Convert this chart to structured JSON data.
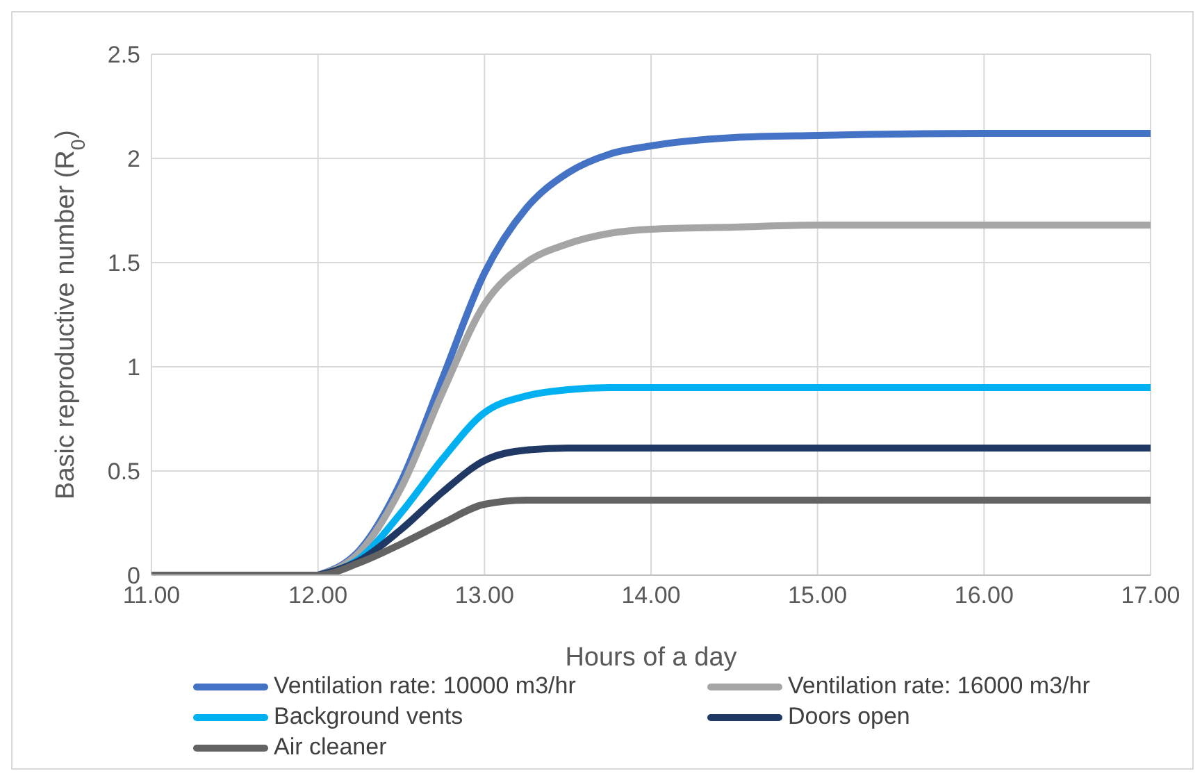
{
  "chart_data": {
    "type": "line",
    "xlabel": "Hours of a day",
    "ylabel": "Basic reproductive number (R$_{0}$)",
    "x": [
      11,
      11.5,
      12,
      12.25,
      12.5,
      12.75,
      13,
      13.25,
      13.5,
      13.75,
      14,
      14.5,
      15,
      16,
      17
    ],
    "series": [
      {
        "name": "Ventilation rate: 10000 m3/hr",
        "color": "#4472c4",
        "values": [
          null,
          null,
          0,
          0.12,
          0.45,
          0.95,
          1.45,
          1.76,
          1.93,
          2.02,
          2.06,
          2.1,
          2.11,
          2.12,
          2.12
        ]
      },
      {
        "name": "Ventilation rate: 16000 m3/hr",
        "color": "#a5a5a5",
        "values": [
          null,
          null,
          0,
          0.11,
          0.42,
          0.88,
          1.3,
          1.5,
          1.59,
          1.64,
          1.66,
          1.67,
          1.68,
          1.68,
          1.68
        ]
      },
      {
        "name": "Background vents",
        "color": "#00b0f0",
        "values": [
          null,
          null,
          0,
          0.08,
          0.3,
          0.56,
          0.78,
          0.86,
          0.89,
          0.9,
          0.9,
          0.9,
          0.9,
          0.9,
          0.9
        ]
      },
      {
        "name": "Doors open",
        "color": "#203864",
        "values": [
          null,
          null,
          0,
          0.07,
          0.22,
          0.4,
          0.55,
          0.6,
          0.61,
          0.61,
          0.61,
          0.61,
          0.61,
          0.61,
          0.61
        ]
      },
      {
        "name": "Air cleaner",
        "color": "#636363",
        "values": [
          0,
          0,
          0,
          0.06,
          0.15,
          0.25,
          0.34,
          0.36,
          0.36,
          0.36,
          0.36,
          0.36,
          0.36,
          0.36,
          0.36
        ]
      }
    ],
    "xlim": [
      11,
      17
    ],
    "xticks": [
      {
        "value": 11,
        "label": "11.00"
      },
      {
        "value": 12,
        "label": "12.00"
      },
      {
        "value": 13,
        "label": "13.00"
      },
      {
        "value": 14,
        "label": "14.00"
      },
      {
        "value": 15,
        "label": "15.00"
      },
      {
        "value": 16,
        "label": "16.00"
      },
      {
        "value": 17,
        "label": "17.00"
      }
    ],
    "ylim": [
      0,
      2.5
    ],
    "yticks": [
      0,
      0.5,
      1,
      1.5,
      2,
      2.5
    ],
    "grid": true,
    "legend": "bottom",
    "marker": "none",
    "line_style": "solid"
  }
}
